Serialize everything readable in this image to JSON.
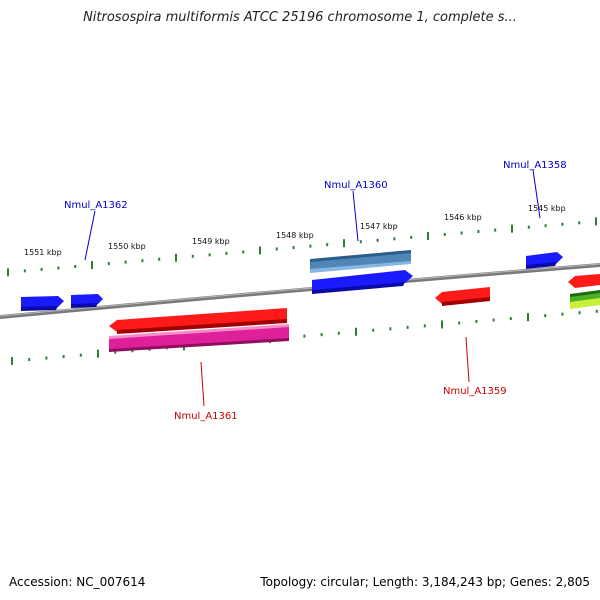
{
  "title": "Nitrosospira multiformis ATCC 25196 chromosome 1, complete s...",
  "footer": {
    "accession": "Accession: NC_007614",
    "summary": "Topology: circular; Length: 3,184,243 bp; Genes: 2,805"
  },
  "ticks": {
    "outer": [
      "1551 kbp",
      "1550 kbp",
      "1549 kbp",
      "1548 kbp",
      "1547 kbp",
      "1546 kbp",
      "1545 kbp"
    ]
  },
  "genes": [
    {
      "label": "Nmul_A1362",
      "strand": "+",
      "color": "#0000cc"
    },
    {
      "label": "Nmul_A1360",
      "strand": "+",
      "color": "#0000cc"
    },
    {
      "label": "Nmul_A1358",
      "strand": "+",
      "color": "#0000cc"
    },
    {
      "label": "Nmul_A1361",
      "strand": "-",
      "color": "#cc0000"
    },
    {
      "label": "Nmul_A1359",
      "strand": "-",
      "color": "#cc0000"
    }
  ],
  "colors": {
    "forward_gene": "#1a1aff",
    "reverse_gene": "#ff1a1a",
    "rna_gene": "#e0209a",
    "alt_forward": "#4f86b8",
    "green_gene": "#4caf28",
    "backbone": "#7a7a7a",
    "tick": "#2e7d32"
  }
}
